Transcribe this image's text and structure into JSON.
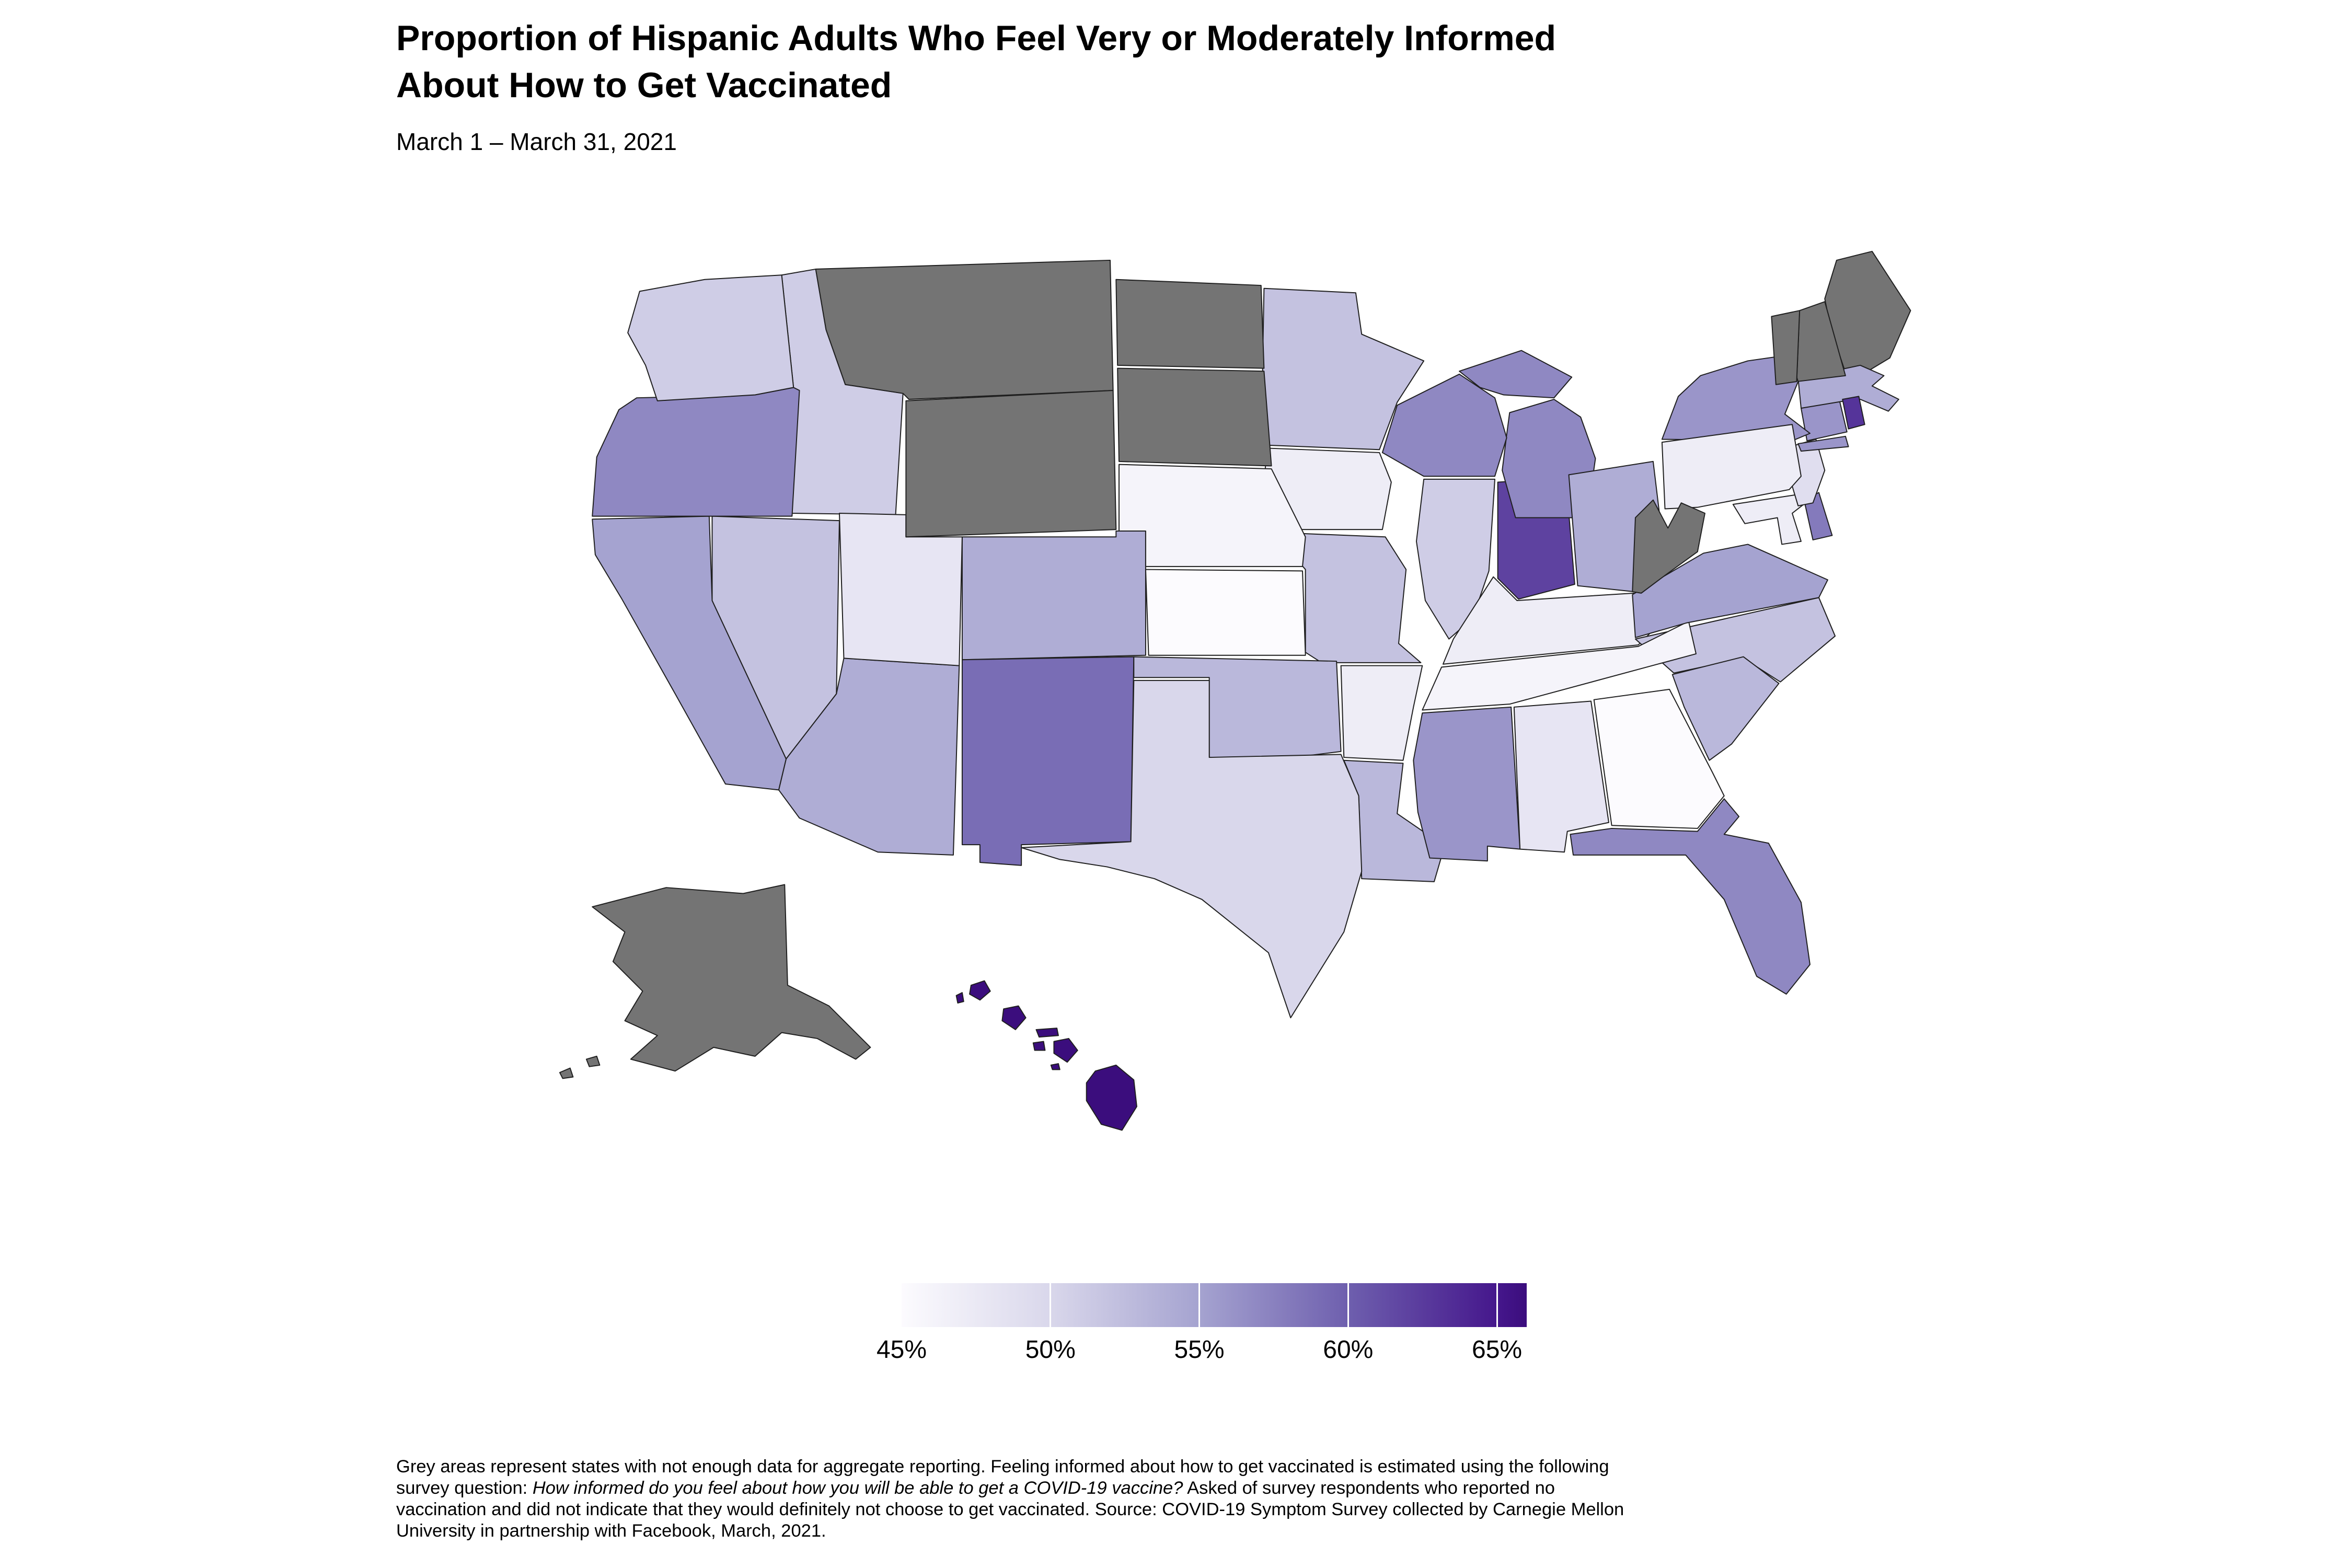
{
  "header": {
    "title_line1": "Proportion of Hispanic Adults Who Feel Very or Moderately Informed",
    "title_line2": "About How to Get Vaccinated",
    "subtitle": "March 1 – March 31, 2021"
  },
  "legend": {
    "ticks": [
      "45%",
      "50%",
      "55%",
      "60%",
      "65%"
    ],
    "tick_values": [
      45,
      50,
      55,
      60,
      65
    ],
    "min_value": 45,
    "max_value": 66,
    "gradient_stops": [
      {
        "value": 45,
        "color": "#fcfbfe"
      },
      {
        "value": 50,
        "color": "#d9d7eb"
      },
      {
        "value": 55,
        "color": "#a5a3d0"
      },
      {
        "value": 60,
        "color": "#6e5fae"
      },
      {
        "value": 65,
        "color": "#45178c"
      },
      {
        "value": 66,
        "color": "#3b0d7d"
      }
    ],
    "no_data_color": "#747474",
    "background_color": "#ffffff"
  },
  "footnote": {
    "lines": [
      [
        {
          "t": "Grey areas represent states with not enough data for aggregate reporting. Feeling informed about how to get vaccinated is estimated using the following"
        }
      ],
      [
        {
          "t": "survey question: "
        },
        {
          "t": "How informed do you feel about how you will be able to get a COVID-19 vaccine?",
          "i": true
        },
        {
          "t": " Asked of survey respondents who reported no"
        }
      ],
      [
        {
          "t": "vaccination and did not indicate that they would definitely not choose to get vaccinated. Source: COVID-19 Symptom Survey collected by Carnegie Mellon"
        }
      ],
      [
        {
          "t": "University in partnership with Facebook, March, 2021."
        }
      ]
    ]
  },
  "chart_data": {
    "type": "choropleth",
    "title": "Proportion of Hispanic Adults Who Feel Very or Moderately Informed About How to Get Vaccinated",
    "date_range": "March 1 – March 31, 2021",
    "unit": "percent",
    "value_domain": [
      45,
      66
    ],
    "no_data_note": "Grey areas represent states with not enough data for aggregate reporting.",
    "states": [
      {
        "abbr": "AL",
        "name": "Alabama",
        "value": 48
      },
      {
        "abbr": "AK",
        "name": "Alaska",
        "value": null
      },
      {
        "abbr": "AZ",
        "name": "Arizona",
        "value": 54
      },
      {
        "abbr": "AR",
        "name": "Arkansas",
        "value": 47
      },
      {
        "abbr": "CA",
        "name": "California",
        "value": 55
      },
      {
        "abbr": "CO",
        "name": "Colorado",
        "value": 54
      },
      {
        "abbr": "CT",
        "name": "Connecticut",
        "value": 56
      },
      {
        "abbr": "DE",
        "name": "Delaware",
        "value": 58
      },
      {
        "abbr": "DC",
        "name": "District of Columbia",
        "value": null
      },
      {
        "abbr": "FL",
        "name": "Florida",
        "value": 57
      },
      {
        "abbr": "GA",
        "name": "Georgia",
        "value": 45
      },
      {
        "abbr": "HI",
        "name": "Hawaii",
        "value": 66
      },
      {
        "abbr": "ID",
        "name": "Idaho",
        "value": 51
      },
      {
        "abbr": "IL",
        "name": "Illinois",
        "value": 51
      },
      {
        "abbr": "IN",
        "name": "Indiana",
        "value": 62
      },
      {
        "abbr": "IA",
        "name": "Iowa",
        "value": 47
      },
      {
        "abbr": "KS",
        "name": "Kansas",
        "value": 45
      },
      {
        "abbr": "KY",
        "name": "Kentucky",
        "value": 47
      },
      {
        "abbr": "LA",
        "name": "Louisiana",
        "value": 53
      },
      {
        "abbr": "ME",
        "name": "Maine",
        "value": null
      },
      {
        "abbr": "MD",
        "name": "Maryland",
        "value": 47
      },
      {
        "abbr": "MA",
        "name": "Massachusetts",
        "value": 54
      },
      {
        "abbr": "MI",
        "name": "Michigan",
        "value": 57
      },
      {
        "abbr": "MN",
        "name": "Minnesota",
        "value": 52
      },
      {
        "abbr": "MS",
        "name": "Mississippi",
        "value": 56
      },
      {
        "abbr": "MO",
        "name": "Missouri",
        "value": 52
      },
      {
        "abbr": "MT",
        "name": "Montana",
        "value": null
      },
      {
        "abbr": "NE",
        "name": "Nebraska",
        "value": 46
      },
      {
        "abbr": "NV",
        "name": "Nevada",
        "value": 52
      },
      {
        "abbr": "NH",
        "name": "New Hampshire",
        "value": null
      },
      {
        "abbr": "NJ",
        "name": "New Jersey",
        "value": 49
      },
      {
        "abbr": "NM",
        "name": "New Mexico",
        "value": 59
      },
      {
        "abbr": "NY",
        "name": "New York",
        "value": 56
      },
      {
        "abbr": "NC",
        "name": "North Carolina",
        "value": 52
      },
      {
        "abbr": "ND",
        "name": "North Dakota",
        "value": null
      },
      {
        "abbr": "OH",
        "name": "Ohio",
        "value": 54
      },
      {
        "abbr": "OK",
        "name": "Oklahoma",
        "value": 53
      },
      {
        "abbr": "OR",
        "name": "Oregon",
        "value": 57
      },
      {
        "abbr": "PA",
        "name": "Pennsylvania",
        "value": 47
      },
      {
        "abbr": "RI",
        "name": "Rhode Island",
        "value": 63
      },
      {
        "abbr": "SC",
        "name": "South Carolina",
        "value": 53
      },
      {
        "abbr": "SD",
        "name": "South Dakota",
        "value": null
      },
      {
        "abbr": "TN",
        "name": "Tennessee",
        "value": 46
      },
      {
        "abbr": "TX",
        "name": "Texas",
        "value": 50
      },
      {
        "abbr": "UT",
        "name": "Utah",
        "value": 48
      },
      {
        "abbr": "VT",
        "name": "Vermont",
        "value": null
      },
      {
        "abbr": "VA",
        "name": "Virginia",
        "value": 55
      },
      {
        "abbr": "WA",
        "name": "Washington",
        "value": 51
      },
      {
        "abbr": "WV",
        "name": "West Virginia",
        "value": null
      },
      {
        "abbr": "WI",
        "name": "Wisconsin",
        "value": 57
      },
      {
        "abbr": "WY",
        "name": "Wyoming",
        "value": null
      }
    ]
  }
}
